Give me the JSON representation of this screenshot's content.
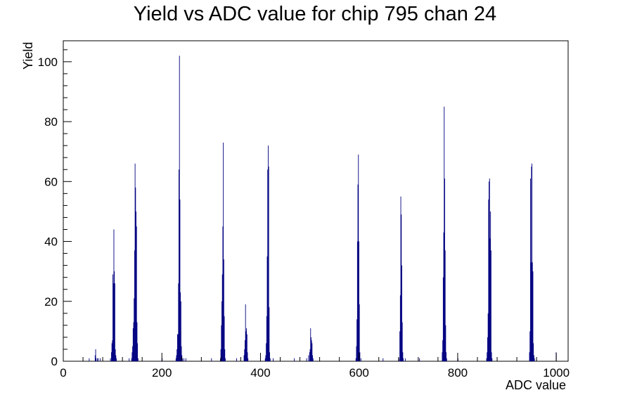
{
  "chart_data": {
    "type": "bar",
    "title": "Yield vs ADC value for chip 795 chan 24",
    "xlabel": "ADC value",
    "ylabel": "Yield",
    "xlim": [
      0,
      1024
    ],
    "ylim": [
      0,
      107
    ],
    "x_ticks": [
      0,
      200,
      400,
      600,
      800,
      1000
    ],
    "y_ticks": [
      0,
      20,
      40,
      60,
      80,
      100
    ],
    "grid": false,
    "legend": "none",
    "colors": {
      "series": "#000080",
      "axis": "#000000"
    },
    "series": [
      {
        "bins": [
          [
            52,
            1
          ],
          [
            64,
            2
          ],
          [
            65,
            4
          ],
          [
            66,
            1
          ],
          [
            69,
            1
          ],
          [
            70,
            1
          ],
          [
            74,
            1
          ],
          [
            95,
            1
          ],
          [
            97,
            3
          ],
          [
            98,
            6
          ],
          [
            99,
            7
          ],
          [
            100,
            29
          ],
          [
            101,
            26
          ],
          [
            102,
            44
          ],
          [
            103,
            30
          ],
          [
            104,
            26
          ],
          [
            105,
            4
          ],
          [
            106,
            2
          ],
          [
            107,
            1
          ],
          [
            133,
            1
          ],
          [
            138,
            1
          ],
          [
            139,
            3
          ],
          [
            140,
            5
          ],
          [
            141,
            11
          ],
          [
            142,
            13
          ],
          [
            143,
            21
          ],
          [
            144,
            37
          ],
          [
            145,
            66
          ],
          [
            146,
            58
          ],
          [
            147,
            50
          ],
          [
            148,
            45
          ],
          [
            149,
            13
          ],
          [
            150,
            6
          ],
          [
            151,
            1
          ],
          [
            200,
            1
          ],
          [
            228,
            1
          ],
          [
            229,
            2
          ],
          [
            230,
            4
          ],
          [
            231,
            9
          ],
          [
            232,
            9
          ],
          [
            233,
            26
          ],
          [
            234,
            64
          ],
          [
            235,
            102
          ],
          [
            236,
            54
          ],
          [
            237,
            23
          ],
          [
            238,
            20
          ],
          [
            239,
            5
          ],
          [
            240,
            2
          ],
          [
            241,
            1
          ],
          [
            244,
            1
          ],
          [
            248,
            1
          ],
          [
            300,
            1
          ],
          [
            318,
            1
          ],
          [
            319,
            4
          ],
          [
            320,
            12
          ],
          [
            321,
            20
          ],
          [
            322,
            29
          ],
          [
            323,
            45
          ],
          [
            324,
            73
          ],
          [
            325,
            34
          ],
          [
            326,
            15
          ],
          [
            327,
            4
          ],
          [
            328,
            1
          ],
          [
            351,
            1
          ],
          [
            366,
            2
          ],
          [
            367,
            4
          ],
          [
            368,
            7
          ],
          [
            369,
            19
          ],
          [
            370,
            10
          ],
          [
            371,
            11
          ],
          [
            372,
            9
          ],
          [
            373,
            3
          ],
          [
            374,
            1
          ],
          [
            409,
            1
          ],
          [
            410,
            2
          ],
          [
            411,
            6
          ],
          [
            412,
            15
          ],
          [
            413,
            35
          ],
          [
            414,
            64
          ],
          [
            415,
            72
          ],
          [
            416,
            65
          ],
          [
            417,
            18
          ],
          [
            418,
            3
          ],
          [
            419,
            1
          ],
          [
            425,
            1
          ],
          [
            468,
            1
          ],
          [
            493,
            1
          ],
          [
            497,
            2
          ],
          [
            499,
            3
          ],
          [
            500,
            4
          ],
          [
            501,
            11
          ],
          [
            502,
            8
          ],
          [
            503,
            7
          ],
          [
            504,
            6
          ],
          [
            505,
            2
          ],
          [
            506,
            1
          ],
          [
            593,
            1
          ],
          [
            594,
            5
          ],
          [
            595,
            14
          ],
          [
            596,
            40
          ],
          [
            597,
            59
          ],
          [
            598,
            69
          ],
          [
            599,
            40
          ],
          [
            600,
            19
          ],
          [
            601,
            3
          ],
          [
            603,
            1
          ],
          [
            648,
            1
          ],
          [
            680,
            1
          ],
          [
            682,
            10
          ],
          [
            683,
            22
          ],
          [
            684,
            55
          ],
          [
            685,
            49
          ],
          [
            686,
            32
          ],
          [
            687,
            13
          ],
          [
            688,
            3
          ],
          [
            689,
            1
          ],
          [
            693,
            1
          ],
          [
            722,
            1
          ],
          [
            768,
            3
          ],
          [
            769,
            7
          ],
          [
            770,
            28
          ],
          [
            771,
            43
          ],
          [
            772,
            85
          ],
          [
            773,
            61
          ],
          [
            774,
            37
          ],
          [
            775,
            12
          ],
          [
            776,
            3
          ],
          [
            777,
            1
          ],
          [
            800,
            1
          ],
          [
            858,
            1
          ],
          [
            859,
            3
          ],
          [
            860,
            8
          ],
          [
            861,
            16
          ],
          [
            862,
            54
          ],
          [
            863,
            60
          ],
          [
            864,
            61
          ],
          [
            865,
            41
          ],
          [
            866,
            50
          ],
          [
            867,
            37
          ],
          [
            868,
            3
          ],
          [
            869,
            1
          ],
          [
            945,
            3
          ],
          [
            946,
            10
          ],
          [
            947,
            61
          ],
          [
            948,
            33
          ],
          [
            949,
            65
          ],
          [
            950,
            66
          ],
          [
            951,
            33
          ],
          [
            952,
            30
          ],
          [
            953,
            6
          ],
          [
            954,
            2
          ],
          [
            955,
            1
          ],
          [
            999,
            3
          ]
        ]
      }
    ]
  }
}
